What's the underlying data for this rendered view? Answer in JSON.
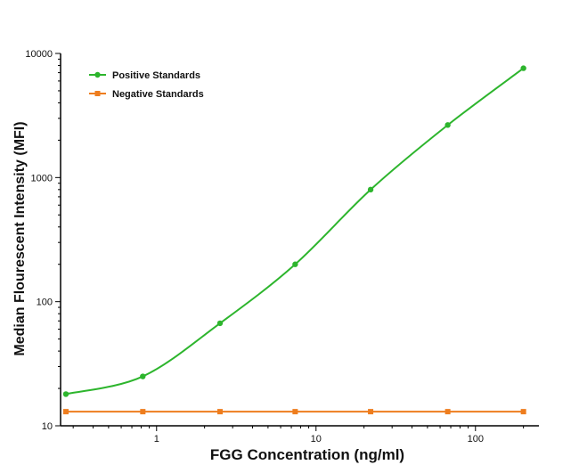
{
  "chart_data": {
    "type": "line",
    "xlabel": "FGG Concentration (ng/ml)",
    "ylabel": "Median Flourescent Intensity (MFI)",
    "x_scale": "log",
    "y_scale": "log",
    "xlim": [
      0.25,
      250
    ],
    "ylim": [
      10,
      10000
    ],
    "x_ticks": [
      1,
      10,
      100
    ],
    "x_tick_labels": [
      "1",
      "10",
      "100"
    ],
    "y_ticks": [
      10,
      100,
      1000,
      10000
    ],
    "y_tick_labels": [
      "10",
      "100",
      "1000",
      "10000"
    ],
    "grid": false,
    "legend_position": "top-left",
    "series": [
      {
        "name": "Positive Standards",
        "color": "#2db52d",
        "marker": "circle",
        "fit_curve": true,
        "x": [
          0.27,
          0.82,
          2.5,
          7.4,
          22,
          67,
          200
        ],
        "y": [
          18,
          25,
          67,
          200,
          800,
          2650,
          7600
        ]
      },
      {
        "name": "Negative Standards",
        "color": "#ee7d1e",
        "marker": "square",
        "fit_curve": false,
        "x": [
          0.27,
          0.82,
          2.5,
          7.4,
          22,
          67,
          200
        ],
        "y": [
          13,
          13,
          13,
          13,
          13,
          13,
          13
        ]
      }
    ]
  }
}
